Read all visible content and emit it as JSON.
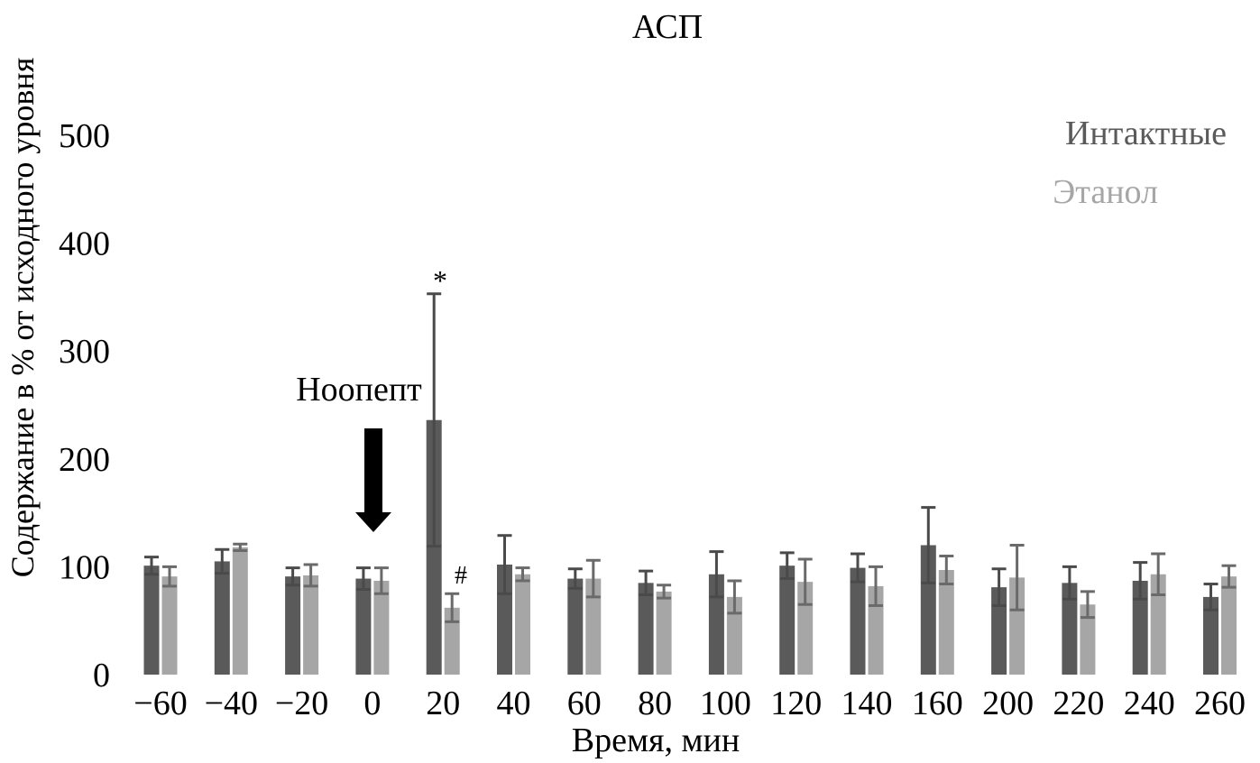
{
  "chart_data": {
    "type": "bar",
    "title": "АСП",
    "xlabel": "Время, мин",
    "ylabel": "Содержание в % от исходного уровня",
    "ylim": [
      0,
      500
    ],
    "yticks": [
      "0",
      "100",
      "200",
      "300",
      "400",
      "500"
    ],
    "categories": [
      "−60",
      "−40",
      "−20",
      "0",
      "20",
      "40",
      "60",
      "80",
      "100",
      "120",
      "140",
      "160",
      "200",
      "220",
      "240",
      "260"
    ],
    "series": [
      {
        "name": "Интактные",
        "color": "#5a5a5a",
        "values": [
          101,
          105,
          91,
          89,
          236,
          102,
          89,
          85,
          93,
          101,
          99,
          120,
          81,
          85,
          87,
          72
        ],
        "errors": [
          8,
          11,
          8,
          10,
          117,
          27,
          9,
          11,
          21,
          12,
          13,
          35,
          17,
          15,
          17,
          12
        ]
      },
      {
        "name": "Этанол",
        "color": "#a6a6a6",
        "values": [
          91,
          118,
          92,
          87,
          62,
          93,
          89,
          77,
          72,
          86,
          82,
          97,
          90,
          65,
          93,
          91
        ],
        "errors": [
          9,
          3,
          10,
          12,
          13,
          6,
          17,
          6,
          15,
          21,
          18,
          13,
          30,
          12,
          19,
          10
        ]
      }
    ],
    "legend_position": "top-right",
    "annotations": {
      "arrow_label": "Ноопепт",
      "arrow_category": "0",
      "star": "*",
      "star_category": "20",
      "hash": "#",
      "hash_category": "20"
    },
    "grid": false
  }
}
